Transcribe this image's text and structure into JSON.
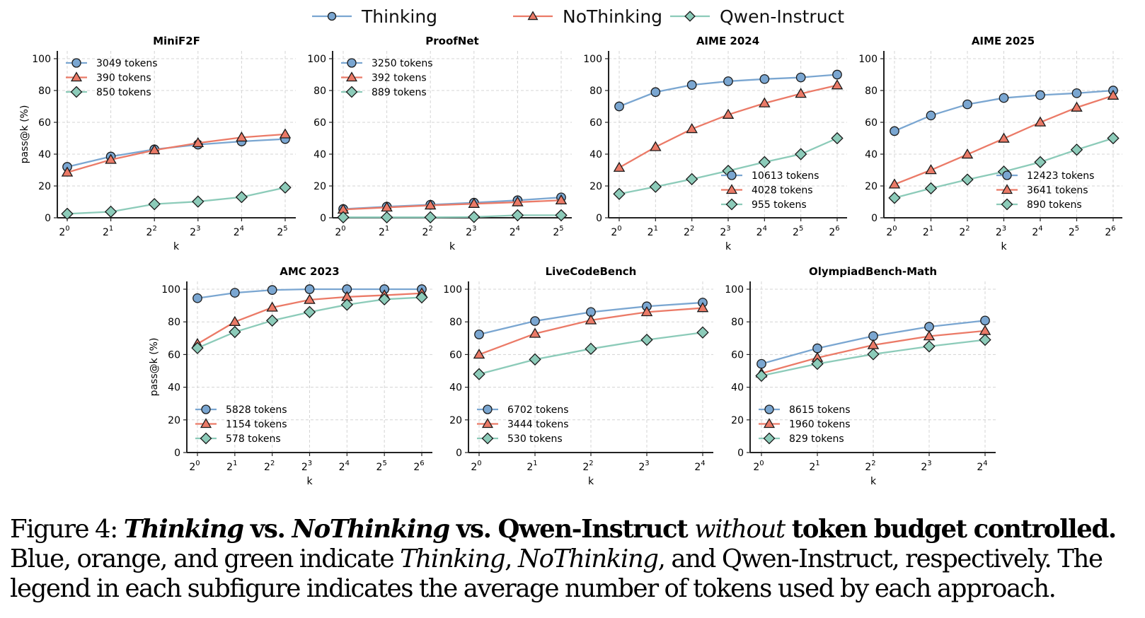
{
  "legend": {
    "entries": [
      {
        "name": "Thinking",
        "color": "#7aa6d1",
        "marker": "circle"
      },
      {
        "name": "NoThinking",
        "color": "#eb7a67",
        "marker": "triangle"
      },
      {
        "name": "Qwen-Instruct",
        "color": "#8ccbb9",
        "marker": "diamond"
      }
    ]
  },
  "chart_data": [
    {
      "type": "line",
      "title": "MiniF2F",
      "xlabel": "k",
      "ylabel": "pass@k (%)",
      "x": [
        "2^0",
        "2^1",
        "2^2",
        "2^3",
        "2^4",
        "2^5"
      ],
      "ylim": [
        0,
        100
      ],
      "yticks": [
        0,
        20,
        40,
        60,
        80,
        100
      ],
      "grid": true,
      "legend_position": "top-left",
      "series": [
        {
          "name": "Thinking",
          "label": "3049 tokens",
          "values": [
            32,
            38.5,
            43,
            46,
            48,
            49.5
          ]
        },
        {
          "name": "NoThinking",
          "label": "390 tokens",
          "values": [
            28.5,
            36.5,
            42.5,
            47,
            50.5,
            52.5
          ]
        },
        {
          "name": "Qwen-Instruct",
          "label": "850 tokens",
          "values": [
            2.5,
            3.8,
            8.6,
            10.2,
            13,
            19
          ]
        }
      ]
    },
    {
      "type": "line",
      "title": "ProofNet",
      "xlabel": "k",
      "ylabel": "",
      "x": [
        "2^0",
        "2^1",
        "2^2",
        "2^3",
        "2^4",
        "2^5"
      ],
      "ylim": [
        0,
        100
      ],
      "yticks": [
        0,
        20,
        40,
        60,
        80,
        100
      ],
      "grid": true,
      "legend_position": "top-left",
      "series": [
        {
          "name": "Thinking",
          "label": "3250 tokens",
          "values": [
            5.5,
            7,
            8.2,
            9.5,
            11,
            12.8
          ]
        },
        {
          "name": "NoThinking",
          "label": "392 tokens",
          "values": [
            5.2,
            6.5,
            7.8,
            8.8,
            9.8,
            11
          ]
        },
        {
          "name": "Qwen-Instruct",
          "label": "889 tokens",
          "values": [
            0.3,
            0.3,
            0.3,
            0.5,
            1.6,
            1.6
          ]
        }
      ]
    },
    {
      "type": "line",
      "title": "AIME 2024",
      "xlabel": "k",
      "ylabel": "",
      "x": [
        "2^0",
        "2^1",
        "2^2",
        "2^3",
        "2^4",
        "2^5",
        "2^6"
      ],
      "ylim": [
        0,
        100
      ],
      "yticks": [
        0,
        20,
        40,
        60,
        80,
        100
      ],
      "grid": true,
      "legend_position": "bottom-right",
      "series": [
        {
          "name": "Thinking",
          "label": "10613 tokens",
          "values": [
            70,
            79,
            83.5,
            85.8,
            87.2,
            88.2,
            90
          ]
        },
        {
          "name": "NoThinking",
          "label": "4028 tokens",
          "values": [
            31.5,
            44.5,
            55.8,
            64.8,
            72,
            78,
            83.3
          ]
        },
        {
          "name": "Qwen-Instruct",
          "label": "955 tokens",
          "values": [
            15,
            19.5,
            24.3,
            29.5,
            35,
            40,
            50
          ]
        }
      ]
    },
    {
      "type": "line",
      "title": "AIME 2025",
      "xlabel": "k",
      "ylabel": "",
      "x": [
        "2^0",
        "2^1",
        "2^2",
        "2^3",
        "2^4",
        "2^5",
        "2^6"
      ],
      "ylim": [
        0,
        100
      ],
      "yticks": [
        0,
        20,
        40,
        60,
        80,
        100
      ],
      "grid": true,
      "legend_position": "bottom-right",
      "series": [
        {
          "name": "Thinking",
          "label": "12423 tokens",
          "values": [
            54.5,
            64.3,
            71.3,
            75.3,
            77.1,
            78.3,
            80
          ]
        },
        {
          "name": "NoThinking",
          "label": "3641 tokens",
          "values": [
            21,
            30,
            39.8,
            49.8,
            60,
            69.3,
            76.8
          ]
        },
        {
          "name": "Qwen-Instruct",
          "label": "890 tokens",
          "values": [
            12.5,
            18.5,
            24,
            29,
            35,
            42.8,
            50
          ]
        }
      ]
    },
    {
      "type": "line",
      "title": "AMC 2023",
      "xlabel": "k",
      "ylabel": "pass@k (%)",
      "x": [
        "2^0",
        "2^1",
        "2^2",
        "2^3",
        "2^4",
        "2^5",
        "2^6"
      ],
      "ylim": [
        0,
        100
      ],
      "yticks": [
        0,
        20,
        40,
        60,
        80,
        100
      ],
      "grid": true,
      "legend_position": "bottom-left",
      "series": [
        {
          "name": "Thinking",
          "label": "5828 tokens",
          "values": [
            94.5,
            97.8,
            99.5,
            100,
            100,
            100,
            100
          ]
        },
        {
          "name": "NoThinking",
          "label": "1154 tokens",
          "values": [
            66.5,
            80,
            88.8,
            93.5,
            95.3,
            96.3,
            97.5
          ]
        },
        {
          "name": "Qwen-Instruct",
          "label": "578 tokens",
          "values": [
            64,
            73.8,
            80.8,
            86,
            90.5,
            93.8,
            95
          ]
        }
      ]
    },
    {
      "type": "line",
      "title": "LiveCodeBench",
      "xlabel": "k",
      "ylabel": "",
      "x": [
        "2^0",
        "2^1",
        "2^2",
        "2^3",
        "2^4"
      ],
      "ylim": [
        0,
        100
      ],
      "yticks": [
        0,
        20,
        40,
        60,
        80,
        100
      ],
      "grid": true,
      "legend_position": "bottom-left",
      "series": [
        {
          "name": "Thinking",
          "label": "6702 tokens",
          "values": [
            72.3,
            80.5,
            86,
            89.5,
            91.8
          ]
        },
        {
          "name": "NoThinking",
          "label": "3444 tokens",
          "values": [
            60,
            72.8,
            81,
            86,
            88.5
          ]
        },
        {
          "name": "Qwen-Instruct",
          "label": "530 tokens",
          "values": [
            48,
            57,
            63.5,
            69,
            73.5
          ]
        }
      ]
    },
    {
      "type": "line",
      "title": "OlympiadBench-Math",
      "xlabel": "k",
      "ylabel": "",
      "x": [
        "2^0",
        "2^1",
        "2^2",
        "2^3",
        "2^4"
      ],
      "ylim": [
        0,
        100
      ],
      "yticks": [
        0,
        20,
        40,
        60,
        80,
        100
      ],
      "grid": true,
      "legend_position": "bottom-left",
      "series": [
        {
          "name": "Thinking",
          "label": "8615 tokens",
          "values": [
            54.3,
            63.8,
            71.3,
            77,
            80.8
          ]
        },
        {
          "name": "NoThinking",
          "label": "1960 tokens",
          "values": [
            48.5,
            58,
            65.8,
            71.2,
            74.5
          ]
        },
        {
          "name": "Qwen-Instruct",
          "label": "829 tokens",
          "values": [
            47,
            54.3,
            60.2,
            65,
            69
          ]
        }
      ]
    }
  ],
  "caption": {
    "figure_label": "Figure 4:",
    "title_parts": [
      {
        "text": "Thinking",
        "style": "bold-italic"
      },
      {
        "text": " vs. ",
        "style": "bold"
      },
      {
        "text": "NoThinking",
        "style": "bold-italic"
      },
      {
        "text": " vs. Qwen-Instruct ",
        "style": "bold"
      },
      {
        "text": "without",
        "style": "italic"
      },
      {
        "text": " token budget controlled.",
        "style": "bold"
      }
    ],
    "body_parts": [
      {
        "text": "Blue, orange, and green indicate ",
        "style": "normal"
      },
      {
        "text": "Thinking",
        "style": "italic"
      },
      {
        "text": ", ",
        "style": "normal"
      },
      {
        "text": "NoThinking",
        "style": "italic"
      },
      {
        "text": ", and Qwen-Instruct, respectively. The legend in each subfigure indicates the average number of tokens used by each approach.",
        "style": "normal"
      }
    ]
  }
}
